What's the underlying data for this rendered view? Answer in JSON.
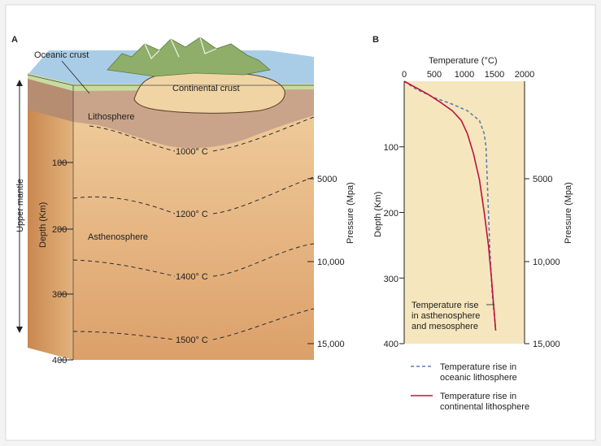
{
  "panel_a": {
    "letter": "A",
    "oceanic_crust_label": "Oceanic crust",
    "continental_crust_label": "Continental crust",
    "lithosphere_label": "Lithosphere",
    "asthenosphere_label": "Asthenosphere",
    "upper_mantle_label": "Upper mantle",
    "depth_axis_label": "Depth (Km)",
    "depth_ticks": [
      "100",
      "200",
      "300",
      "400"
    ],
    "pressure_axis_label": "Pressure (Mpa)",
    "pressure_ticks": [
      "5000",
      "10,000",
      "15,000"
    ],
    "isotherms": [
      "1000° C",
      "1200° C",
      "1400° C",
      "1500° C"
    ],
    "colors": {
      "water": "#a9cde6",
      "oceanic_crust": "#c8dba0",
      "lithosphere": "#c9a48a",
      "asthenosphere_top": "#f1cf9f",
      "asthenosphere_bottom": "#dca06a",
      "continental_crust": "#f0d4a4",
      "mountains": "#8fae6a"
    }
  },
  "panel_b": {
    "letter": "B",
    "background_color": "#f6e6bd",
    "chart_data": {
      "type": "line",
      "title": "",
      "xlabel": "Temperature (°C)",
      "ylabel": "Depth (Km)",
      "secondary_ylabel": "Pressure (Mpa)",
      "xlim": [
        0,
        2000
      ],
      "ylim": [
        400,
        0
      ],
      "x_ticks": [
        "0",
        "500",
        "1000",
        "1500",
        "2000"
      ],
      "y_ticks": [
        "100",
        "200",
        "300",
        "400"
      ],
      "secondary_y_ticks": [
        "5000",
        "10,000",
        "15,000"
      ],
      "annotation": [
        "Temperature rise",
        "in asthenosphere",
        "and mesosphere"
      ],
      "legend_placement": "bottom",
      "series": [
        {
          "name": "Temperature rise in oceanic lithosphere",
          "legend_lines": [
            "Temperature rise in",
            "oceanic lithosphere"
          ],
          "style": "dashed",
          "color": "#5b7fb6",
          "x": [
            0,
            200,
            500,
            800,
            1050,
            1250,
            1330,
            1360,
            1380,
            1400,
            1420,
            1460,
            1520
          ],
          "y": [
            0,
            12,
            25,
            35,
            45,
            60,
            80,
            100,
            150,
            200,
            250,
            320,
            380
          ]
        },
        {
          "name": "Temperature rise in continental lithosphere",
          "legend_lines": [
            "Temperature rise in",
            "continental lithosphere"
          ],
          "style": "solid",
          "color": "#c0123c",
          "x": [
            0,
            200,
            400,
            600,
            800,
            950,
            1050,
            1150,
            1250,
            1330,
            1400,
            1450,
            1520
          ],
          "y": [
            0,
            10,
            20,
            32,
            45,
            60,
            80,
            110,
            150,
            200,
            250,
            300,
            380
          ]
        }
      ]
    }
  }
}
